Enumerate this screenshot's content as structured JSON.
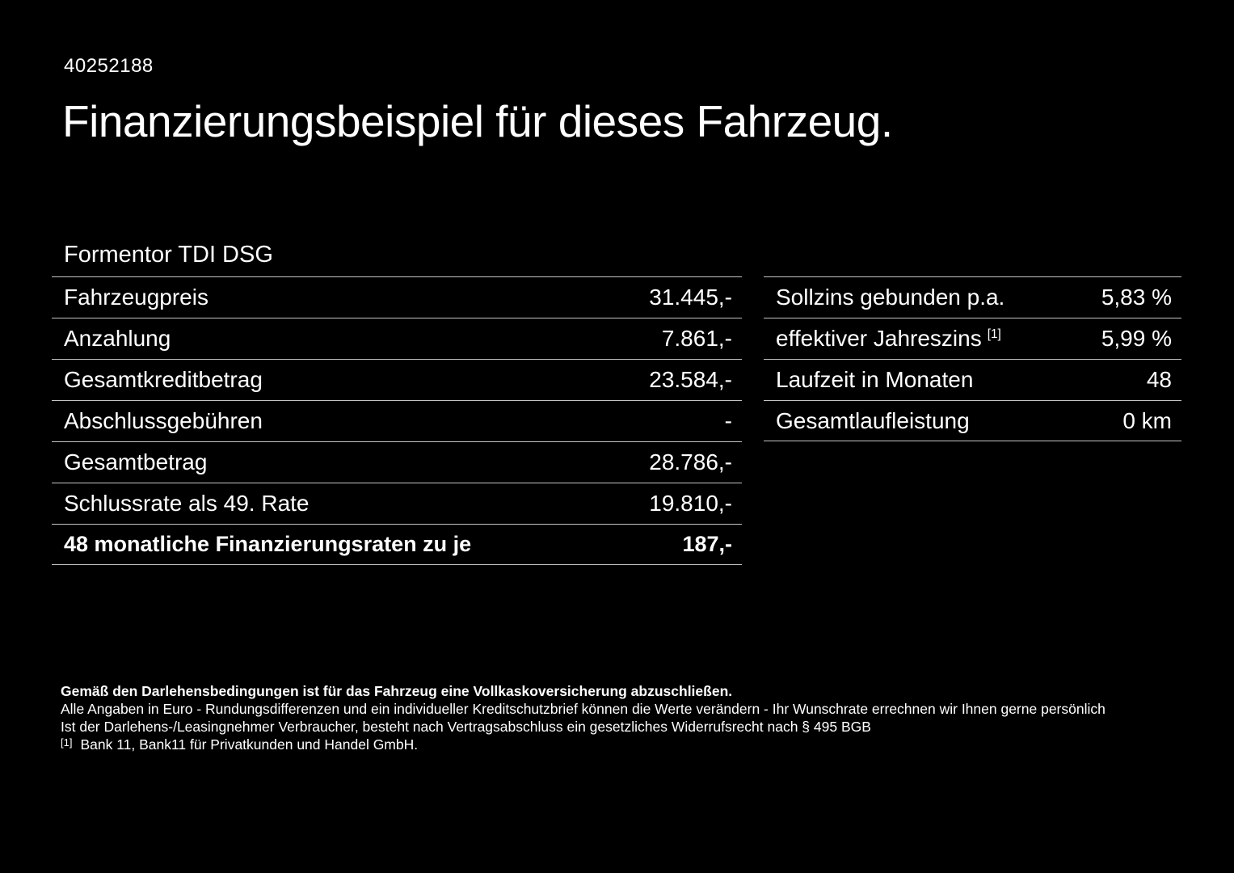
{
  "page": {
    "id_number": "40252188",
    "title": "Finanzierungsbeispiel für dieses Fahrzeug.",
    "model_name": "Formentor TDI DSG"
  },
  "finance_table": {
    "rows": [
      {
        "label": "Fahrzeugpreis",
        "value": "31.445,-"
      },
      {
        "label": "Anzahlung",
        "value": "7.861,-"
      },
      {
        "label": "Gesamtkreditbetrag",
        "value": "23.584,-"
      },
      {
        "label": "Abschlussgebühren",
        "value": "-"
      },
      {
        "label": "Gesamtbetrag",
        "value": "28.786,-"
      },
      {
        "label": "Schlussrate als 49. Rate",
        "value": "19.810,-"
      },
      {
        "label": "48 monatliche Finanzierungsraten zu je",
        "value": "187,-"
      }
    ]
  },
  "conditions_table": {
    "rows": [
      {
        "label": "Sollzins gebunden p.a.",
        "value": "5,83 %"
      },
      {
        "label": "effektiver Jahreszins",
        "footnote_marker": "[1]",
        "value": "5,99 %"
      },
      {
        "label": "Laufzeit in Monaten",
        "value": "48"
      },
      {
        "label": "Gesamtlaufleistung",
        "value": "0 km"
      }
    ]
  },
  "footer": {
    "insurance_note": "Gemäß den Darlehensbedingungen ist für das Fahrzeug eine Vollkaskoversicherung abzuschließen.",
    "disclaimer_line1": "Alle Angaben in Euro - Rundungsdifferenzen und ein individueller Kreditschutzbrief können die Werte verändern - Ihr Wunschrate errechnen wir Ihnen gerne persönlich",
    "disclaimer_line2": "Ist der Darlehens-/Leasingnehmer Verbraucher, besteht nach Vertragsabschluss ein gesetzliches Widerrufsrecht nach § 495 BGB",
    "footnote_marker": "[1]",
    "footnote_text": "Bank 11, Bank11 für Privatkunden und Handel GmbH."
  },
  "colors": {
    "background": "#000000",
    "text": "#ffffff",
    "divider": "#c4c4c4"
  }
}
